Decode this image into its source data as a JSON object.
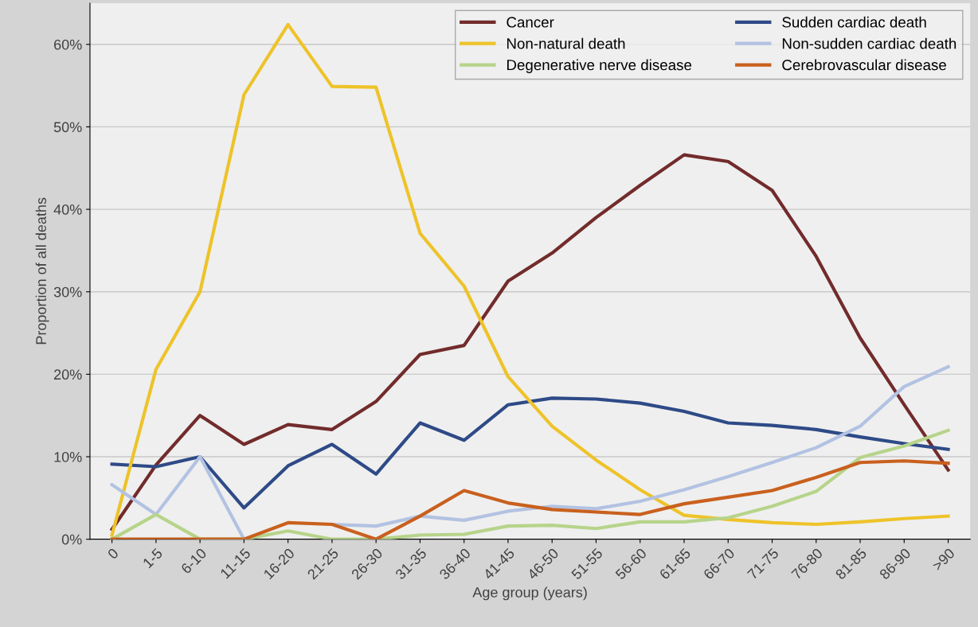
{
  "chart_data": {
    "type": "line",
    "xlabel": "Age group (years)",
    "ylabel": "Proportion of all deaths",
    "categories": [
      "0",
      "1-5",
      "6-10",
      "11-15",
      "16-20",
      "21-25",
      "26-30",
      "31-35",
      "36-40",
      "41-45",
      "46-50",
      "51-55",
      "56-60",
      "61-65",
      "66-70",
      "71-75",
      "76-80",
      "81-85",
      "86-90",
      ">90"
    ],
    "series": [
      {
        "name": "Cancer",
        "color": "#722b2b",
        "values": [
          1.2,
          9,
          15,
          11.5,
          13.9,
          13.3,
          16.7,
          22.4,
          23.5,
          31.3,
          34.7,
          39,
          42.9,
          46.6,
          45.8,
          42.3,
          34.3,
          24.4,
          16.3,
          8.4
        ]
      },
      {
        "name": "Sudden cardiac death",
        "color": "#2e4a87",
        "values": [
          9.1,
          8.8,
          10,
          3.8,
          8.9,
          11.5,
          7.9,
          14.1,
          12,
          16.3,
          17.1,
          17,
          16.5,
          15.5,
          14.1,
          13.8,
          13.3,
          12.4,
          11.6,
          10.9
        ]
      },
      {
        "name": "Non-natural death",
        "color": "#eec32a",
        "values": [
          0.5,
          20.6,
          30,
          53.9,
          62.4,
          54.9,
          54.8,
          37.1,
          30.7,
          19.7,
          13.7,
          9.6,
          6,
          2.9,
          2.4,
          2,
          1.8,
          2.1,
          2.5,
          2.8
        ]
      },
      {
        "name": "Non-sudden cardiac death",
        "color": "#b2c2e2",
        "values": [
          6.6,
          3,
          10,
          0,
          null,
          1.8,
          1.6,
          2.8,
          2.3,
          3.4,
          4,
          3.7,
          4.6,
          6,
          7.6,
          9.3,
          11.1,
          13.7,
          18.5,
          20.9
        ]
      },
      {
        "name": "Degenerative nerve disease",
        "color": "#b6d48a",
        "values": [
          0,
          3,
          0,
          0,
          1,
          0,
          0,
          0.5,
          0.6,
          1.6,
          1.7,
          1.3,
          2.1,
          2.1,
          2.6,
          4,
          5.8,
          9.9,
          11.3,
          13.2
        ]
      },
      {
        "name": "Cerebrovascular disease",
        "color": "#c9601e",
        "values": [
          0,
          0,
          0,
          0,
          2,
          1.8,
          0,
          2.8,
          5.9,
          4.4,
          3.6,
          3.3,
          3,
          4.3,
          5.1,
          5.9,
          7.5,
          9.3,
          9.5,
          9.2
        ]
      }
    ],
    "ylim": [
      0,
      65
    ],
    "yticks": [
      {
        "value": 0,
        "label": "0%"
      },
      {
        "value": 10,
        "label": "10%"
      },
      {
        "value": 20,
        "label": "20%"
      },
      {
        "value": 30,
        "label": "30%"
      },
      {
        "value": 40,
        "label": "40%"
      },
      {
        "value": 50,
        "label": "50%"
      },
      {
        "value": 60,
        "label": "60%"
      }
    ],
    "grid": "y",
    "legend": "top right",
    "marker": "none",
    "line_style": "solid"
  }
}
